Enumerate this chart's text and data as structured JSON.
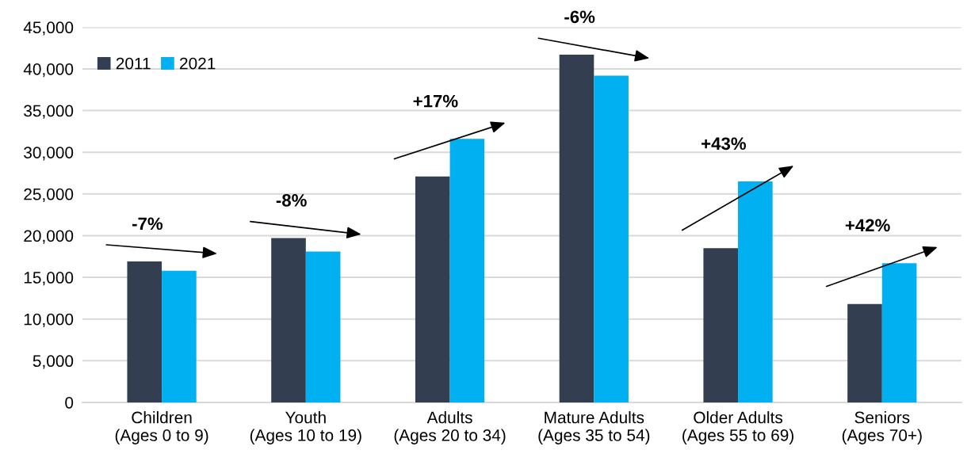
{
  "chart_data": {
    "type": "bar",
    "categories": [
      "Children\n(Ages 0 to 9)",
      "Youth\n(Ages 10 to 19)",
      "Adults\n(Ages 20 to 34)",
      "Mature Adults\n(Ages 35 to 54)",
      "Older Adults\n(Ages 55 to 69)",
      "Seniors\n(Ages 70+)"
    ],
    "series": [
      {
        "name": "2011",
        "color": "#333f50",
        "values": [
          16900,
          19700,
          27100,
          41700,
          18500,
          11800
        ]
      },
      {
        "name": "2021",
        "color": "#00b0f0",
        "values": [
          15800,
          18100,
          31600,
          39200,
          26500,
          16700
        ]
      }
    ],
    "ylim": [
      0,
      45000
    ],
    "yticks": [
      0,
      {
        "value": 5000,
        "label": "5,000"
      },
      {
        "value": 10000,
        "label": "10,000"
      },
      {
        "value": 15000,
        "label": "15,000"
      },
      {
        "value": 20000,
        "label": "20,000"
      },
      {
        "value": 25000,
        "label": "25,000"
      },
      {
        "value": 30000,
        "label": "30,000"
      },
      {
        "value": 35000,
        "label": "35,000"
      },
      {
        "value": 40000,
        "label": "40,000"
      },
      {
        "value": 45000,
        "label": "45,000"
      }
    ],
    "annotations": [
      "-7%",
      "-8%",
      "+17%",
      "-6%",
      "+43%",
      "+42%"
    ],
    "grid": "y",
    "legend": "top left"
  }
}
